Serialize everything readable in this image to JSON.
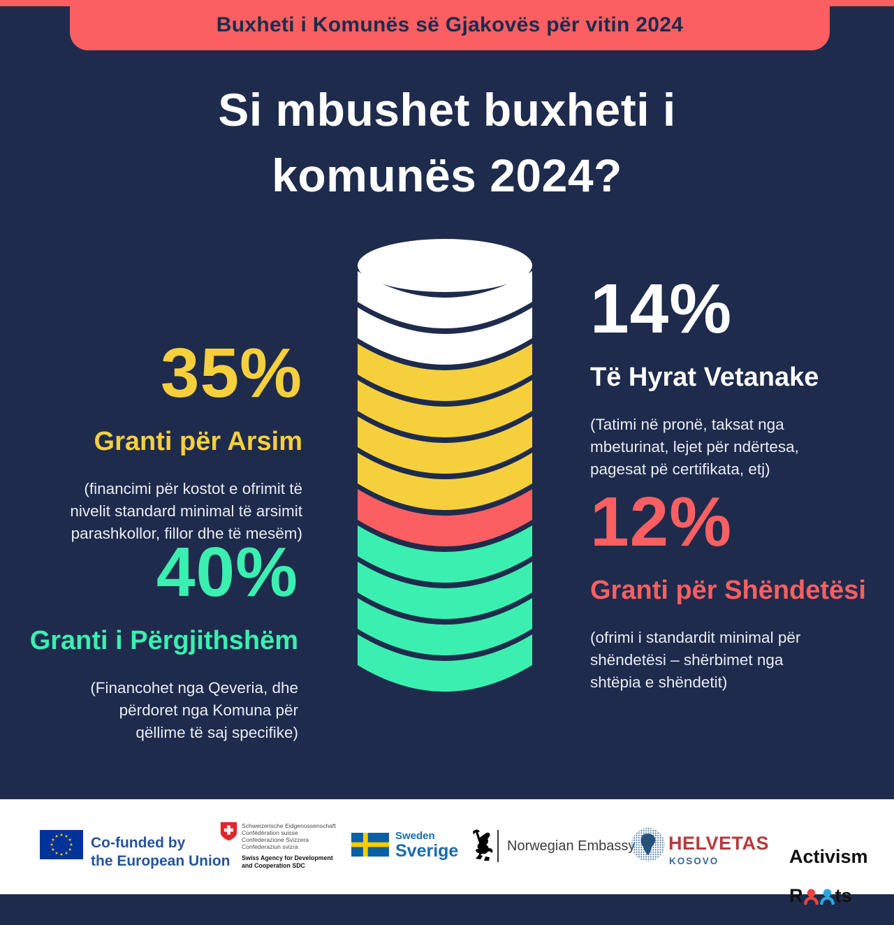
{
  "banner": {
    "text": "Buxheti i Komunës së Gjakovës për vitin 2024"
  },
  "title": "Si mbushet buxheti i\nkomunës 2024?",
  "colors": {
    "background": "#1E2B4C",
    "banner": "#FB5F62",
    "white": "#FFFFFF",
    "yellow": "#F6CF3C",
    "green": "#3BEFB0",
    "coral": "#FB5F62"
  },
  "callouts": {
    "arsim": {
      "percent": "35%",
      "label": "Granti për Arsim",
      "detail": "(financimi për kostot e ofrimit të\nnivelit standard minimal të arsimit\nparashkollor, fillor dhe të mesëm)",
      "color": "#F6CF3C"
    },
    "pergjithshem": {
      "percent": "40%",
      "label": "Granti i Përgjithshëm",
      "detail": "(Financohet nga Qeveria, dhe\npërdoret nga Komuna për\nqëllime të saj specifike)",
      "color": "#3BEFB0"
    },
    "vetanake": {
      "percent": "14%",
      "label": "Të Hyrat Vetanake",
      "detail": "(Tatimi në pronë, taksat nga\nmbeturinat, lejet për ndërtesa,\npagesat pë certifikata, etj)",
      "color": "#FFFFFF"
    },
    "shendetesi": {
      "percent": "12%",
      "label": "Granti për Shëndetësi",
      "detail": "(ofrimi i standardit minimal për\nshëndetësi – shërbimet nga\nshtëpia e shëndetit)",
      "color": "#FB5F62"
    }
  },
  "chart_data": {
    "type": "pictograph-coin-stack",
    "title": "Si mbushet buxheti i komunës 2024?",
    "unit": "percent of 2024 municipal budget of Gjakova",
    "segments_top_to_bottom": [
      {
        "label": "Të Hyrat Vetanake",
        "value": 14,
        "coins": 2,
        "color": "#FFFFFF"
      },
      {
        "label": "Granti për Arsim",
        "value": 35,
        "coins": 4,
        "color": "#F6CF3C"
      },
      {
        "label": "Granti për Shëndetësi",
        "value": 12,
        "coins": 1,
        "color": "#FB5F62"
      },
      {
        "label": "Granti i Përgjithshëm",
        "value": 40,
        "coins": 4,
        "color": "#3BEFB0"
      }
    ]
  },
  "footer": {
    "eu": {
      "text": "Co-funded by\nthe European Union"
    },
    "sdc": {
      "lines": "Schweizerische Eidgenossenschaft\nConfédération suisse\nConfederazione Svizzera\nConfederaziun svizra",
      "agency": "Swiss Agency for Development\nand Cooperation SDC"
    },
    "sweden": {
      "line1": "Sweden",
      "line2": "Sverige"
    },
    "norway": {
      "text": "Norwegian Embassy"
    },
    "helvetas": {
      "name": "HELVETAS",
      "sub": "KOSOVO"
    },
    "activism": {
      "line1": "Activism",
      "r_part": "R",
      "ts_part": "ts",
      "word2": "Roots"
    }
  }
}
